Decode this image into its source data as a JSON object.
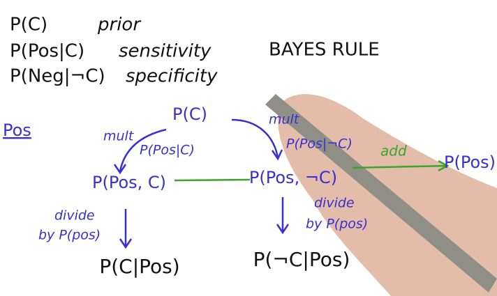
{
  "definitions": [
    {
      "term": "P(C)",
      "meaning": "prior"
    },
    {
      "term": "P(Pos|C)",
      "meaning": "sensitivity"
    },
    {
      "term": "P(Neg|¬C)",
      "meaning": "specificity"
    }
  ],
  "title": "BAYES RULE",
  "section_label": "Pos",
  "nodes": [
    "P(C)",
    "P(Pos, C)",
    "P(Pos, ¬C)",
    "P(Pos)",
    "P(C|Pos)",
    "P(¬C|Pos)"
  ],
  "edge_labels": {
    "left_op": "mult",
    "left_factor": "P(Pos|C)",
    "right_op": "mult",
    "right_factor": "P(Pos|¬C)",
    "sum_op": "add",
    "left_divide": [
      "divide",
      "by P(pos)"
    ],
    "right_divide": [
      "divide",
      "by P(pos)"
    ]
  }
}
